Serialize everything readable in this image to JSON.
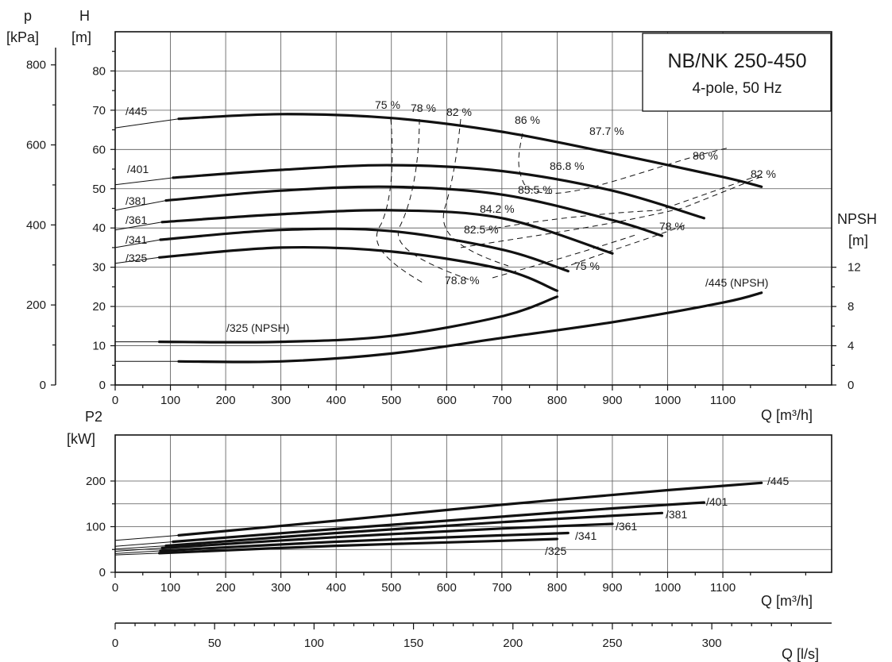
{
  "title": {
    "line1": "NB/NK 250-450",
    "line2": "4-pole, 50 Hz"
  },
  "labels": {
    "p_symbol": "p",
    "p_unit": "[kPa]",
    "h_symbol": "H",
    "h_unit": "[m]",
    "npsh_symbol": "NPSH",
    "npsh_unit": "[m]",
    "p2_symbol": "P2",
    "p2_unit": "[kW]",
    "q_m3h": "Q [m³/h]",
    "q_ls": "Q [l/s]"
  },
  "chart_data": [
    {
      "type": "line",
      "xlabel": "Q [m³/h]",
      "ylabel": "H [m]",
      "xlim": [
        0,
        1300
      ],
      "ylim": [
        0,
        90
      ],
      "x_ticks": [
        0,
        100,
        200,
        300,
        400,
        500,
        600,
        700,
        800,
        900,
        1000,
        1100
      ],
      "y_ticks": [
        0,
        10,
        20,
        30,
        40,
        50,
        60,
        70,
        80
      ],
      "secondary_left_axis": {
        "label": "p [kPa]",
        "ticks": [
          0,
          200,
          400,
          600,
          800
        ]
      },
      "right_axis": {
        "label": "NPSH [m]",
        "ticks": [
          0,
          4,
          8,
          12
        ]
      },
      "grid": true,
      "series": [
        {
          "name": "/445",
          "x": [
            0,
            115,
            300,
            500,
            700,
            900,
            1100,
            1170
          ],
          "y": [
            65.5,
            67.8,
            69,
            68,
            64.5,
            59,
            53,
            50.5
          ]
        },
        {
          "name": "/401",
          "x": [
            0,
            105,
            300,
            500,
            700,
            900,
            1066
          ],
          "y": [
            51,
            52.8,
            54.8,
            56,
            54.5,
            49.5,
            42.5
          ]
        },
        {
          "name": "/381",
          "x": [
            0,
            92,
            300,
            500,
            700,
            900,
            990
          ],
          "y": [
            44.5,
            47,
            49.5,
            50.5,
            48.5,
            42,
            38
          ]
        },
        {
          "name": "/361",
          "x": [
            0,
            85,
            300,
            500,
            700,
            900
          ],
          "y": [
            39.5,
            41.5,
            43.5,
            44.5,
            42.5,
            33.5
          ]
        },
        {
          "name": "/341",
          "x": [
            0,
            82,
            300,
            500,
            700,
            820
          ],
          "y": [
            35,
            37,
            39.5,
            39.2,
            34.5,
            29
          ]
        },
        {
          "name": "/325",
          "x": [
            0,
            80,
            300,
            500,
            700,
            800
          ],
          "y": [
            31,
            32.5,
            35,
            34,
            29.5,
            24
          ]
        },
        {
          "name": "/325 (NPSH)",
          "axis": "NPSH [m]",
          "x": [
            0,
            80,
            300,
            500,
            700,
            800
          ],
          "y": [
            4.4,
            4.4,
            4.4,
            5,
            7,
            9
          ]
        },
        {
          "name": "/445 (NPSH)",
          "axis": "NPSH [m]",
          "x": [
            0,
            115,
            300,
            500,
            700,
            900,
            1100,
            1170
          ],
          "y": [
            2.4,
            2.4,
            2.4,
            3.2,
            4.8,
            6.4,
            8.4,
            9.4
          ]
        }
      ],
      "efficiency_labels": [
        "75 %",
        "78 %",
        "82 %",
        "86 %",
        "87.7 %",
        "86 %",
        "82 %",
        "86.8 %",
        "85.5 %",
        "84.2 %",
        "82.5 %",
        "78 %",
        "75 %",
        "78.8 %"
      ]
    },
    {
      "type": "line",
      "xlabel": "Q [m³/h]",
      "ylabel": "P2 [kW]",
      "xlim": [
        0,
        1300
      ],
      "ylim": [
        0,
        250
      ],
      "x_ticks": [
        0,
        100,
        200,
        300,
        400,
        500,
        600,
        700,
        800,
        900,
        1000,
        1100
      ],
      "y_ticks": [
        0,
        100,
        200
      ],
      "secondary_x_axis": {
        "label": "Q [l/s]",
        "ticks": [
          0,
          50,
          100,
          150,
          200,
          250,
          300
        ]
      },
      "grid": true,
      "series": [
        {
          "name": "/445",
          "x": [
            0,
            115,
            400,
            700,
            1000,
            1170
          ],
          "y": [
            70,
            81,
            113,
            148,
            180,
            196
          ]
        },
        {
          "name": "/401",
          "x": [
            0,
            105,
            400,
            700,
            900,
            1066
          ],
          "y": [
            57,
            67,
            95,
            122,
            140,
            153
          ]
        },
        {
          "name": "/381",
          "x": [
            0,
            92,
            400,
            700,
            990
          ],
          "y": [
            51,
            58,
            86,
            110,
            130
          ]
        },
        {
          "name": "/361",
          "x": [
            0,
            85,
            400,
            700,
            900
          ],
          "y": [
            46,
            53,
            77,
            96,
            106
          ]
        },
        {
          "name": "/341",
          "x": [
            0,
            82,
            400,
            700,
            820
          ],
          "y": [
            41,
            47,
            67,
            81,
            86
          ]
        },
        {
          "name": "/325",
          "x": [
            0,
            80,
            400,
            700,
            800
          ],
          "y": [
            38,
            42,
            58,
            69,
            73
          ]
        }
      ]
    }
  ]
}
